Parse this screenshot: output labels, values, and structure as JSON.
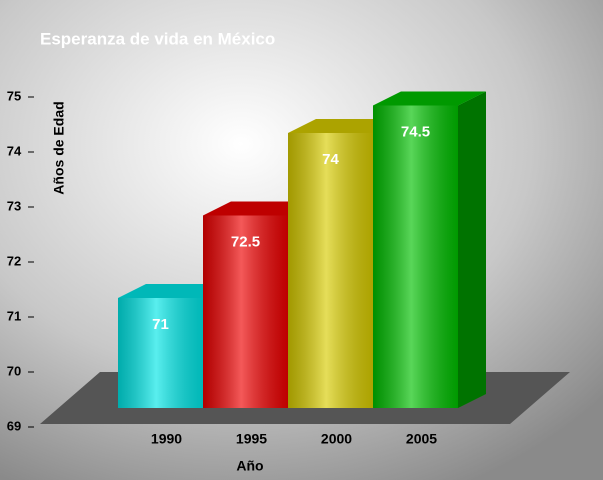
{
  "chart_data": {
    "type": "bar3d",
    "title": "Esperanza de vida en México",
    "y_label": "Años de Edad",
    "x_label": "Año",
    "categories": [
      "1990",
      "1995",
      "2000",
      "2005"
    ],
    "values": [
      71,
      72.5,
      74,
      74.5
    ],
    "colors": [
      "#00e6e6",
      "#ee0000",
      "#d8cc00",
      "#00c000"
    ],
    "ylim": [
      69,
      75
    ],
    "yticks": [
      69,
      70,
      71,
      72,
      73,
      74,
      75
    ]
  }
}
